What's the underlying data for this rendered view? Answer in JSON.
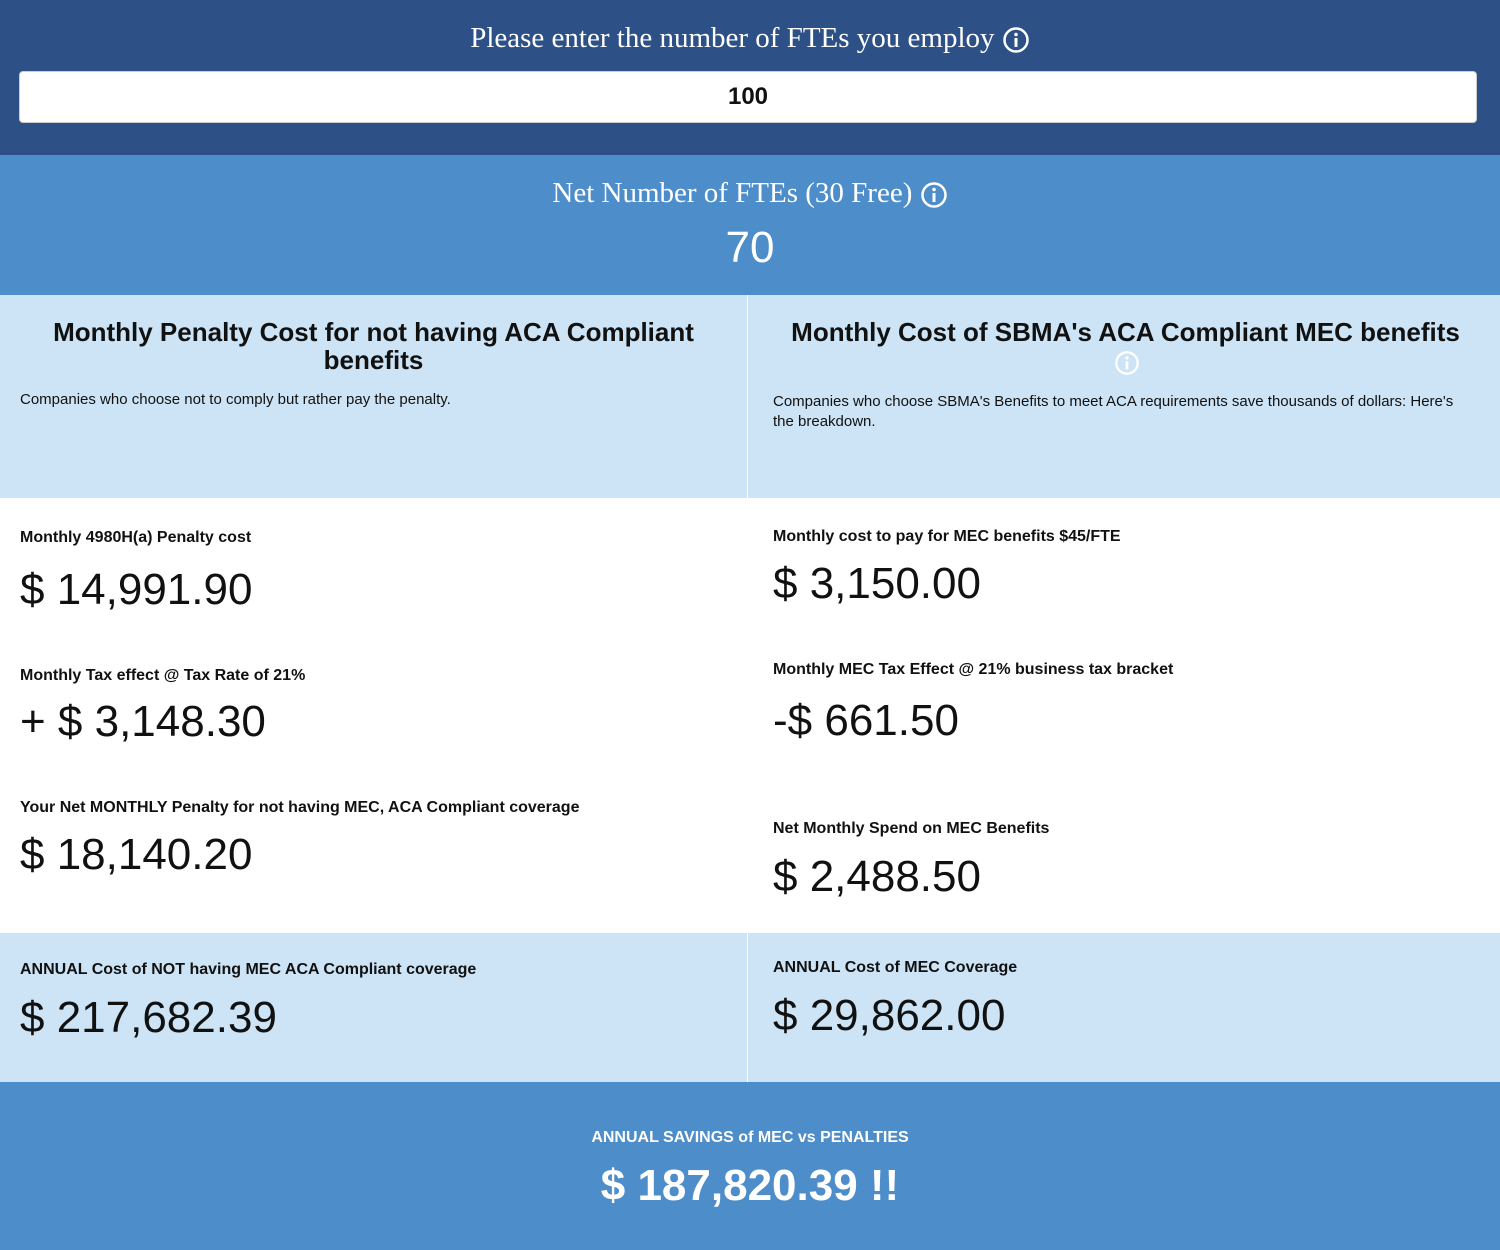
{
  "header": {
    "prompt": "Please enter the number of FTEs you employ",
    "fte_input": "100"
  },
  "net": {
    "label": "Net Number of FTEs (30 Free)",
    "value": "70"
  },
  "penalty": {
    "title": "Monthly Penalty Cost for not having ACA Compliant benefits",
    "description": "Companies who choose not to comply but rather pay the penalty.",
    "items": [
      {
        "label": "Monthly 4980H(a) Penalty cost",
        "value": "$ 14,991.90"
      },
      {
        "label": "Monthly Tax effect @ Tax Rate of 21%",
        "value": "+ $ 3,148.30"
      },
      {
        "label": "Your Net MONTHLY Penalty for not having MEC, ACA Compliant coverage",
        "value": "$ 18,140.20"
      }
    ],
    "annual": {
      "label": "ANNUAL Cost of NOT having MEC ACA Compliant coverage",
      "value": "$ 217,682.39"
    }
  },
  "mec": {
    "title": "Monthly Cost of SBMA's ACA Compliant MEC benefits",
    "description": "Companies who choose SBMA's Benefits to meet ACA requirements save thousands of dollars: Here's the breakdown.",
    "items": [
      {
        "label": "Monthly cost to pay for MEC benefits $45/FTE",
        "value": "$ 3,150.00"
      },
      {
        "label": "Monthly MEC Tax Effect @ 21% business tax bracket",
        "value": "-$ 661.50"
      },
      {
        "label": "Net Monthly Spend on MEC Benefits",
        "value": "$ 2,488.50"
      }
    ],
    "annual": {
      "label": "ANNUAL Cost of MEC Coverage",
      "value": "$ 29,862.00"
    }
  },
  "savings": {
    "label": "ANNUAL SAVINGS of MEC vs PENALTIES",
    "value": "$ 187,820.39 !!"
  }
}
